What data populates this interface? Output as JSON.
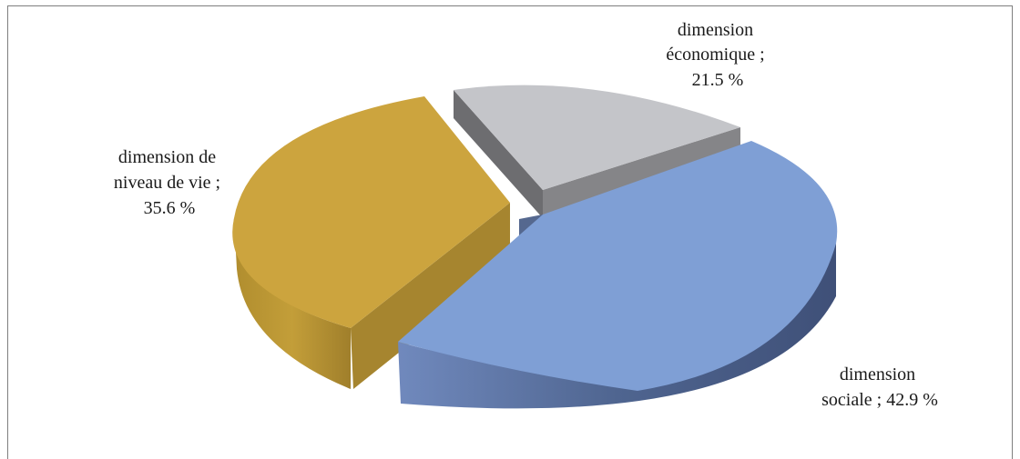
{
  "chart_data": {
    "type": "pie",
    "style": "3d-exploded",
    "slices": [
      {
        "name": "dimension économique",
        "value": 21.5,
        "label_lines": [
          "dimension",
          "économique ;",
          "21.5 %"
        ],
        "top_color": "#c4c5c9",
        "side_color": "#7c7c7f"
      },
      {
        "name": "dimension sociale",
        "value": 42.9,
        "label_lines": [
          "dimension",
          "sociale ; 42.9 %"
        ],
        "top_color": "#7f9fd5",
        "side_color": "#4a5f89"
      },
      {
        "name": "dimension de niveau de vie",
        "value": 35.6,
        "label_lines": [
          "dimension de",
          "niveau de vie ;",
          "35.6 %"
        ],
        "top_color": "#cca43e",
        "side_color": "#a8852d"
      }
    ],
    "legend": "none",
    "data_labels": "outside"
  }
}
